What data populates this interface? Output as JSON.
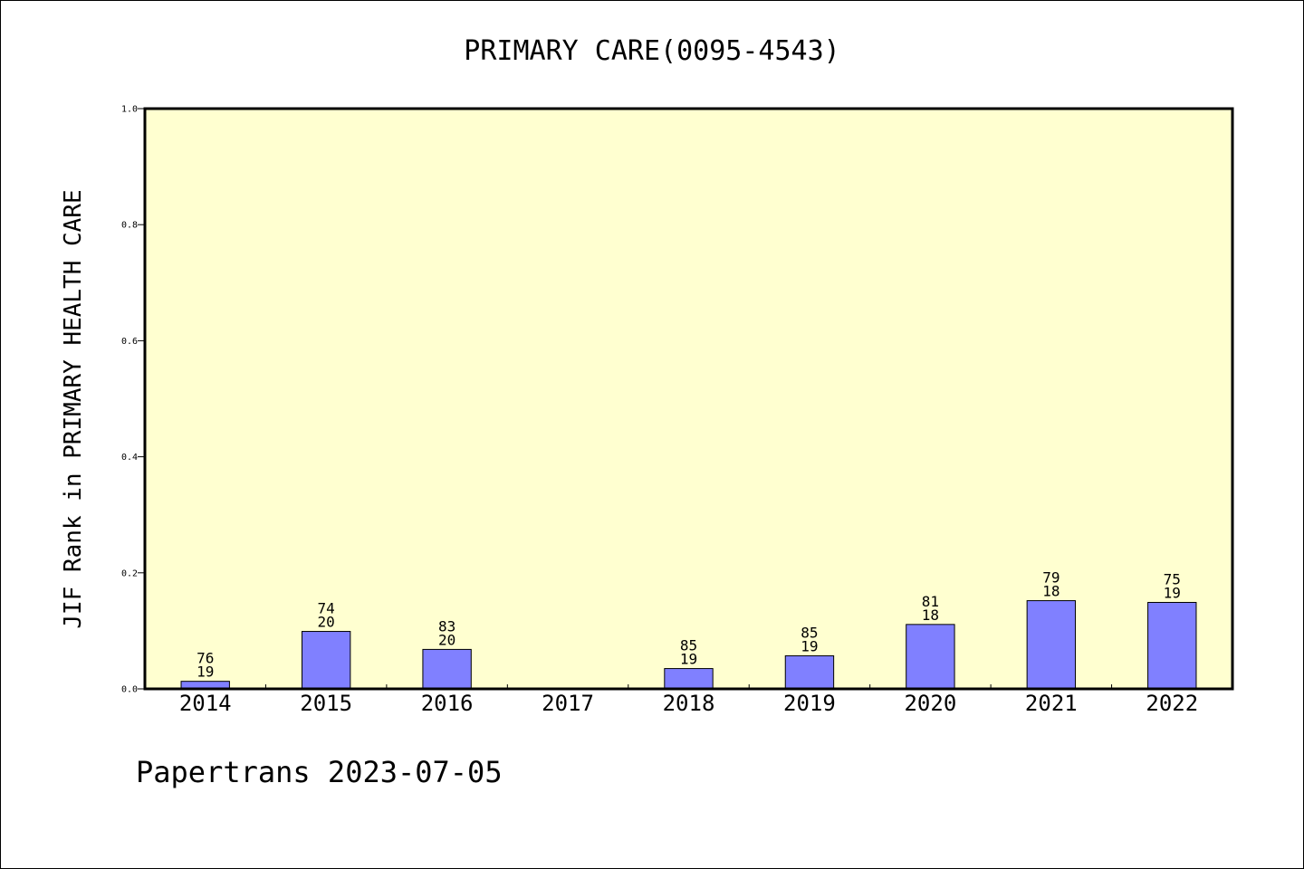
{
  "chart_data": {
    "type": "bar",
    "title": "PRIMARY CARE(0095-4543)",
    "ylabel": "JIF Rank in PRIMARY HEALTH CARE",
    "xlabel": "",
    "ylim": [
      0,
      1.0
    ],
    "yticks": [
      "0.0",
      "0.2",
      "0.4",
      "0.6",
      "0.8",
      "1.0"
    ],
    "categories": [
      "2014",
      "2015",
      "2016",
      "2017",
      "2018",
      "2019",
      "2020",
      "2021",
      "2022"
    ],
    "values": [
      0.013,
      0.099,
      0.068,
      null,
      0.035,
      0.057,
      0.111,
      0.152,
      0.149
    ],
    "labels": [
      {
        "top": "76",
        "bottom": "19"
      },
      {
        "top": "74",
        "bottom": "20"
      },
      {
        "top": "83",
        "bottom": "20"
      },
      null,
      {
        "top": "85",
        "bottom": "19"
      },
      {
        "top": "85",
        "bottom": "19"
      },
      {
        "top": "81",
        "bottom": "18"
      },
      {
        "top": "79",
        "bottom": "18"
      },
      {
        "top": "75",
        "bottom": "19"
      }
    ],
    "grid": false,
    "colors": {
      "bar": "#8080ff",
      "plot_background": "#ffffd0"
    }
  },
  "footer": "Papertrans 2023-07-05"
}
